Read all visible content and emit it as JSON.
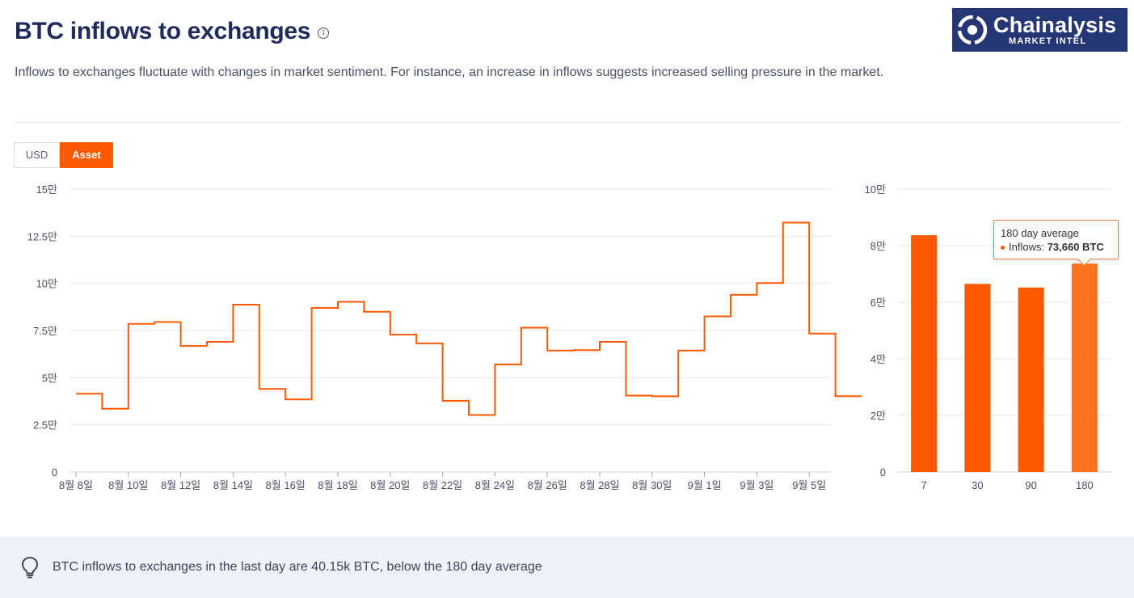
{
  "header": {
    "title": "BTC inflows to exchanges",
    "info_icon": "info-icon",
    "subtitle": "Inflows to exchanges fluctuate with changes in market sentiment. For instance, an increase in inflows suggests increased selling pressure in the market."
  },
  "logo": {
    "name": "Chainalysis",
    "sub": "MARKET INTEL",
    "bg_color": "#243673"
  },
  "toggle": {
    "usd_label": "USD",
    "asset_label": "Asset",
    "selected": "Asset",
    "accent": "#ff5a00"
  },
  "insight": {
    "icon": "lightbulb-icon",
    "text": "BTC inflows to exchanges in the last day are 40.15k BTC, below the 180 day average"
  },
  "tooltip": {
    "title": "180 day average",
    "series_label": "Inflows: ",
    "value": "73,660 BTC"
  },
  "chart_data": [
    {
      "type": "line",
      "step": true,
      "color": "#ff5a00",
      "ylim": [
        0,
        150000
      ],
      "yticks": [
        0,
        25000,
        50000,
        75000,
        100000,
        125000,
        150000
      ],
      "ytick_labels": [
        "0",
        "2.5만",
        "5만",
        "7.5만",
        "10만",
        "12.5만",
        "15만"
      ],
      "x": [
        "8월 8일",
        "8월 9일",
        "8월 10일",
        "8월 11일",
        "8월 12일",
        "8월 13일",
        "8월 14일",
        "8월 15일",
        "8월 16일",
        "8월 17일",
        "8월 18일",
        "8월 19일",
        "8월 20일",
        "8월 21일",
        "8월 22일",
        "8월 23일",
        "8월 24일",
        "8월 25일",
        "8월 26일",
        "8월 27일",
        "8월 28일",
        "8월 29일",
        "8월 30일",
        "8월 31일",
        "9월 1일",
        "9월 2일",
        "9월 3일",
        "9월 4일",
        "9월 5일",
        "9월 6일"
      ],
      "xtick_labels": [
        "8월 8일",
        "8월 10일",
        "8월 12일",
        "8월 14일",
        "8월 16일",
        "8월 18일",
        "8월 20일",
        "8월 22일",
        "8월 24일",
        "8월 26일",
        "8월 28일",
        "8월 30일",
        "9월 1일",
        "9월 3일",
        "9월 5일"
      ],
      "values": [
        41500,
        33500,
        78500,
        79500,
        66800,
        69000,
        88700,
        44000,
        38500,
        87000,
        90200,
        85000,
        72800,
        68200,
        37700,
        30200,
        57000,
        76500,
        64400,
        64600,
        69000,
        40500,
        40100,
        64400,
        82500,
        94000,
        100200,
        132200,
        73400,
        40150
      ],
      "grid": true
    },
    {
      "type": "bar",
      "color": "#ff5a00",
      "highlight_color": "#ff7320",
      "categories": [
        "7",
        "30",
        "90",
        "180"
      ],
      "values": [
        83700,
        66500,
        65200,
        73660
      ],
      "ylim": [
        0,
        100000
      ],
      "yticks": [
        0,
        20000,
        40000,
        60000,
        80000,
        100000
      ],
      "ytick_labels": [
        "0",
        "2만",
        "4만",
        "6만",
        "8만",
        "10만"
      ],
      "highlighted": "180",
      "grid": true
    }
  ]
}
